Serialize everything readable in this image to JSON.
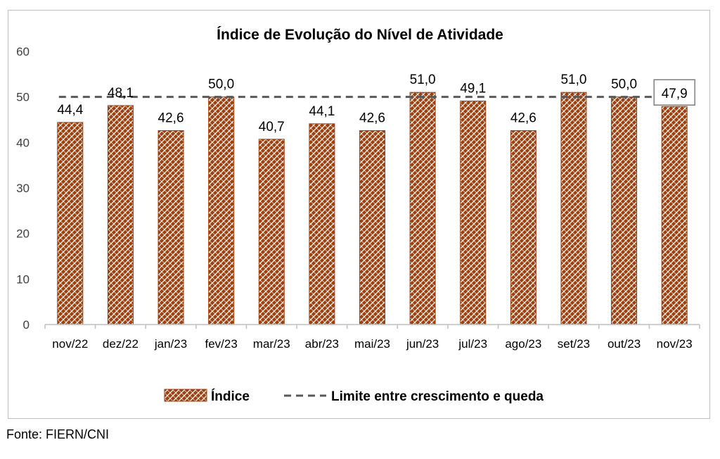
{
  "chart_data": {
    "type": "bar",
    "title": "Índice de Evolução do Nível de Atividade",
    "categories": [
      "nov/22",
      "dez/22",
      "jan/23",
      "fev/23",
      "mar/23",
      "abr/23",
      "mai/23",
      "jun/23",
      "jul/23",
      "ago/23",
      "set/23",
      "out/23",
      "nov/23"
    ],
    "series": [
      {
        "name": "Índice",
        "values": [
          44.4,
          48.1,
          42.6,
          50.0,
          40.7,
          44.1,
          42.6,
          51.0,
          49.1,
          42.6,
          51.0,
          50.0,
          47.9
        ]
      }
    ],
    "data_labels": [
      "44,4",
      "48,1",
      "42,6",
      "50,0",
      "40,7",
      "44,1",
      "42,6",
      "51,0",
      "49,1",
      "42,6",
      "51,0",
      "50,0",
      "47,9"
    ],
    "reference_line": {
      "name": "Limite entre crescimento e queda",
      "value": 50
    },
    "ylim": [
      0,
      60
    ],
    "yticks": [
      0,
      10,
      20,
      30,
      40,
      50,
      60
    ],
    "ytick_labels": [
      "0",
      "10",
      "20",
      "30",
      "40",
      "50",
      "60"
    ],
    "xlabel": "",
    "ylabel": "",
    "grid": false,
    "legend_position": "bottom",
    "highlighted_category": "nov/23",
    "colors": {
      "bar": "#a0400f",
      "bar_pattern": "#ffffff",
      "reference_line": "#595959",
      "axis": "#bfbfbf"
    }
  },
  "source": "Fonte: FIERN/CNI"
}
